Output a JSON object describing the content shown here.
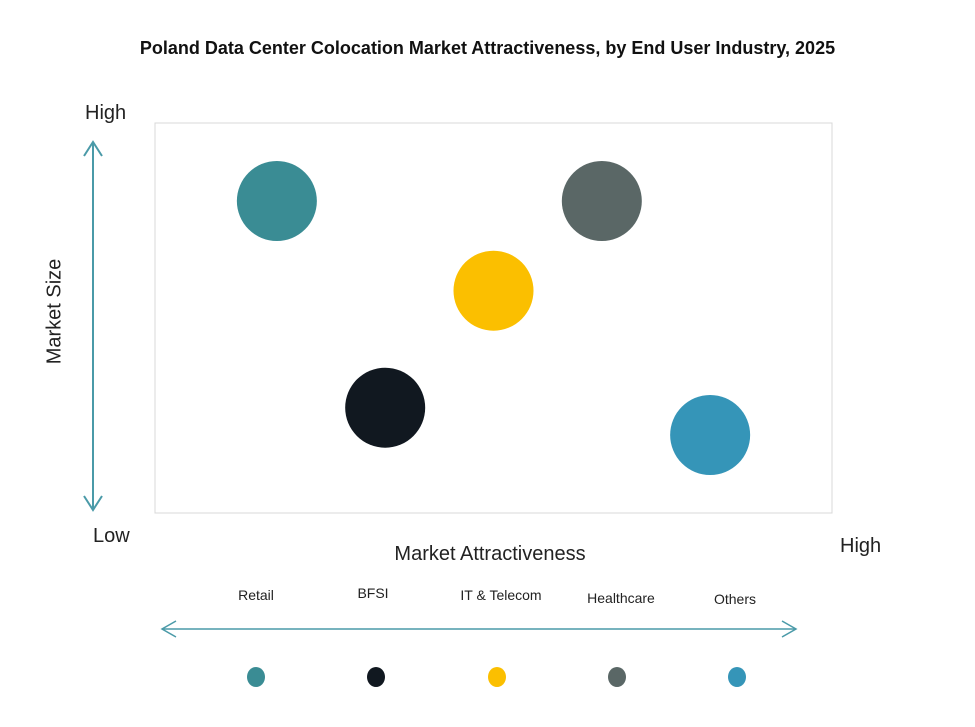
{
  "chart_data": {
    "type": "scatter",
    "title": "Poland Data Center Colocation Market Attractiveness,  by End User Industry, 2025",
    "xlabel": "Market Attractiveness",
    "ylabel": "Market Size",
    "x_low_label": "Low",
    "x_high_label": "High",
    "y_high_label": "High",
    "xlim": [
      0,
      1
    ],
    "ylim": [
      0,
      1
    ],
    "grid": false,
    "legend_placement": "bottom",
    "series": [
      {
        "name": "Retail",
        "x": 0.18,
        "y": 0.8,
        "color": "#3a8c94"
      },
      {
        "name": "BFSI",
        "x": 0.34,
        "y": 0.27,
        "color": "#111820"
      },
      {
        "name": "IT & Telecom",
        "x": 0.5,
        "y": 0.57,
        "color": "#fbbf00"
      },
      {
        "name": "Healthcare",
        "x": 0.66,
        "y": 0.8,
        "color": "#5a6766"
      },
      {
        "name": "Others",
        "x": 0.82,
        "y": 0.2,
        "color": "#3595b8"
      }
    ],
    "axis_arrow_color": "#4a9aa8"
  }
}
